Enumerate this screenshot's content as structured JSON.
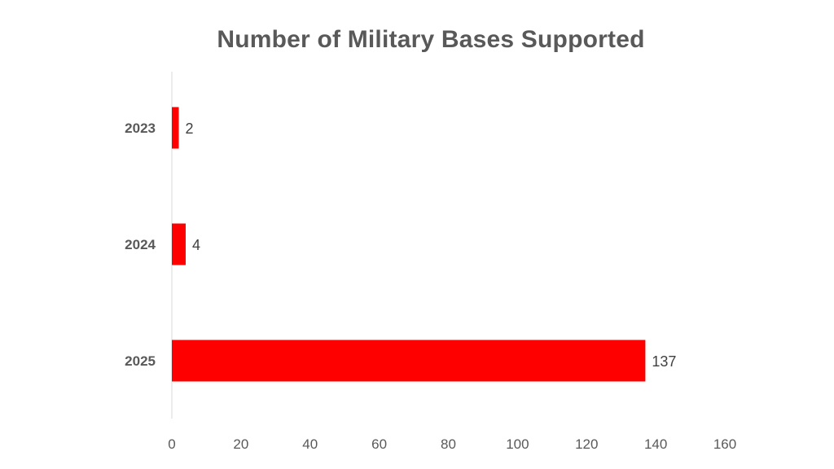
{
  "chart_data": {
    "type": "bar",
    "orientation": "horizontal",
    "title": "Number of Military Bases Supported",
    "categories": [
      "2023",
      "2024",
      "2025"
    ],
    "values": [
      2,
      4,
      137
    ],
    "data_labels": [
      "2",
      "4",
      "137"
    ],
    "xlabel": "",
    "ylabel": "",
    "xlim": [
      0,
      160
    ],
    "x_ticks": [
      "0",
      "20",
      "40",
      "60",
      "80",
      "100",
      "120",
      "140",
      "160"
    ],
    "grid": false,
    "legend": "none",
    "bar_color": "#FF0000"
  }
}
